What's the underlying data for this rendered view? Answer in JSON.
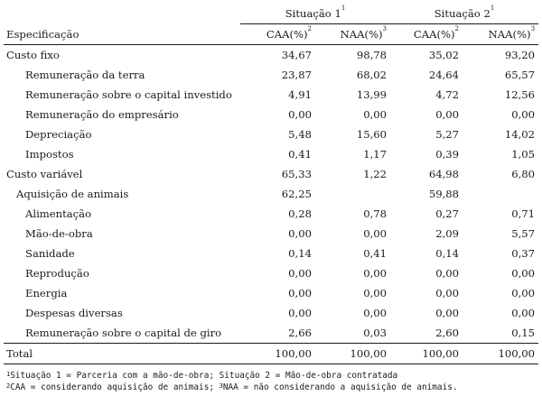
{
  "header": {
    "situacao1": "Situação 1",
    "situacao1_sup": "1",
    "situacao2": "Situação 2",
    "situacao2_sup": "1",
    "especificacao": "Especificação",
    "caa1": "CAA(%)",
    "caa1_sup": "2",
    "naa1": "NAA(%)",
    "naa1_sup": "3",
    "caa2": "CAA(%)",
    "caa2_sup": "2",
    "naa2": "NAA(%)",
    "naa2_sup": "3"
  },
  "rows": [
    {
      "label": "Custo fixo",
      "v": [
        "34,67",
        "98,78",
        "35,02",
        "93,20"
      ]
    },
    {
      "label": "Remuneração da terra",
      "v": [
        "23,87",
        "68,02",
        "24,64",
        "65,57"
      ]
    },
    {
      "label": "Remuneração sobre o capital investido",
      "v": [
        "4,91",
        "13,99",
        "4,72",
        "12,56"
      ]
    },
    {
      "label": "Remuneração do empresário",
      "v": [
        "0,00",
        "0,00",
        "0,00",
        "0,00"
      ]
    },
    {
      "label": "Depreciação",
      "v": [
        "5,48",
        "15,60",
        "5,27",
        "14,02"
      ]
    },
    {
      "label": "Impostos",
      "v": [
        "0,41",
        "1,17",
        "0,39",
        "1,05"
      ]
    },
    {
      "label": "Custo variável",
      "v": [
        "65,33",
        "1,22",
        "64,98",
        "6,80"
      ]
    },
    {
      "label": "Aquisição de animais",
      "v": [
        "62,25",
        "",
        "59,88",
        ""
      ]
    },
    {
      "label": "Alimentação",
      "v": [
        "0,28",
        "0,78",
        "0,27",
        "0,71"
      ]
    },
    {
      "label": "Mão-de-obra",
      "v": [
        "0,00",
        "0,00",
        "2,09",
        "5,57"
      ]
    },
    {
      "label": "Sanidade",
      "v": [
        "0,14",
        "0,41",
        "0,14",
        "0,37"
      ]
    },
    {
      "label": "Reprodução",
      "v": [
        "0,00",
        "0,00",
        "0,00",
        "0,00"
      ]
    },
    {
      "label": "Energia",
      "v": [
        "0,00",
        "0,00",
        "0,00",
        "0,00"
      ]
    },
    {
      "label": "Despesas diversas",
      "v": [
        "0,00",
        "0,00",
        "0,00",
        "0,00"
      ]
    },
    {
      "label": "Remuneração sobre o capital de giro",
      "v": [
        "2,66",
        "0,03",
        "2,60",
        "0,15"
      ]
    }
  ],
  "total": {
    "label": "Total",
    "v": [
      "100,00",
      "100,00",
      "100,00",
      "100,00"
    ]
  },
  "notes": {
    "line1_sup": "1",
    "line1": "Situação 1 = Parceria com a mão-de-obra; Situação 2 = Mão-de-obra contratada",
    "line2_sup_a": "2",
    "line2_a": "CAA = considerando aquisição de animais; ",
    "line2_sup_b": "3",
    "line2_b": "NAA = não considerando a aquisição de animais."
  }
}
